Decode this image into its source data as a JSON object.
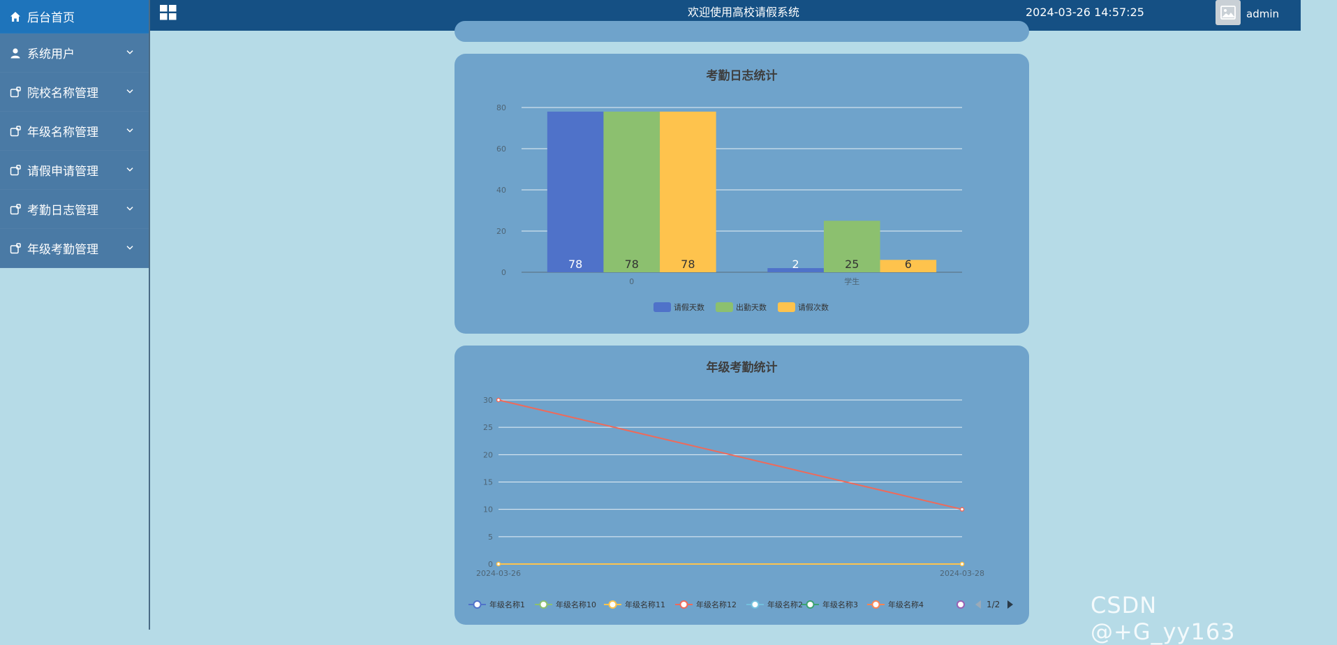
{
  "sidebar": {
    "items": [
      {
        "label": "后台首页",
        "icon": "home-icon"
      },
      {
        "label": "系统用户",
        "icon": "user-icon"
      },
      {
        "label": "院校名称管理",
        "icon": "module-icon"
      },
      {
        "label": "年级名称管理",
        "icon": "module-icon"
      },
      {
        "label": "请假申请管理",
        "icon": "module-icon"
      },
      {
        "label": "考勤日志管理",
        "icon": "module-icon"
      },
      {
        "label": "年级考勤管理",
        "icon": "module-icon"
      }
    ]
  },
  "header": {
    "title": "欢迎使用高校请假系统",
    "datetime": "2024-03-26 14:57:25",
    "username": "admin"
  },
  "colors": {
    "blue": "#4f72c9",
    "green": "#8cc06f",
    "yellow": "#fec34d",
    "red": "#ee6a5a"
  },
  "chart_data": [
    {
      "type": "bar",
      "title": "考勤日志统计",
      "categories": [
        "0",
        "学生"
      ],
      "series": [
        {
          "name": "请假天数",
          "values": [
            78,
            2
          ]
        },
        {
          "name": "出勤天数",
          "values": [
            78,
            25
          ]
        },
        {
          "name": "请假次数",
          "values": [
            78,
            6
          ]
        }
      ],
      "yticks": [
        "0",
        "20",
        "40",
        "60",
        "80"
      ],
      "ylim": [
        0,
        80
      ],
      "grid": true,
      "legend": "bottom"
    },
    {
      "type": "line",
      "title": "年级考勤统计",
      "x": [
        "2024-03-26",
        "2024-03-28"
      ],
      "series": [
        {
          "name": "年级名称1",
          "values": [
            0,
            0
          ]
        },
        {
          "name": "年级名称10",
          "values": [
            0,
            0
          ]
        },
        {
          "name": "年级名称11",
          "values": [
            0,
            0
          ]
        },
        {
          "name": "年级名称12",
          "values": [
            30,
            10
          ]
        },
        {
          "name": "年级名称2",
          "values": [
            0,
            0
          ]
        },
        {
          "name": "年级名称3",
          "values": [
            0,
            0
          ]
        },
        {
          "name": "年级名称4",
          "values": [
            0,
            0
          ]
        }
      ],
      "yticks": [
        "0",
        "5",
        "10",
        "15",
        "20",
        "25",
        "30"
      ],
      "ylim": [
        0,
        30
      ],
      "grid": true,
      "legend": "bottom",
      "legend_page": "1/2"
    }
  ],
  "watermark": "CSDN @+G_yy163"
}
